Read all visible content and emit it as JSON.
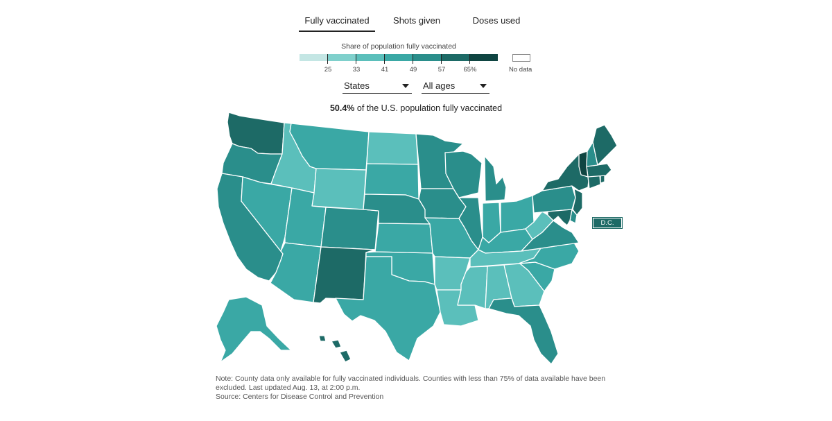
{
  "tabs": [
    {
      "label": "Fully vaccinated",
      "active": true
    },
    {
      "label": "Shots given",
      "active": false
    },
    {
      "label": "Doses used",
      "active": false
    }
  ],
  "legend": {
    "title": "Share of population fully vaccinated",
    "ticks": [
      "25",
      "33",
      "41",
      "49",
      "57",
      "65%"
    ],
    "no_data_label": "No data",
    "colors": [
      "#c4e6e4",
      "#7fd0cc",
      "#5bbfbb",
      "#3aa8a5",
      "#2a8e8b",
      "#1d6a66",
      "#0f4542"
    ]
  },
  "controls": {
    "geography_select": "States",
    "age_select": "All ages"
  },
  "headline": {
    "value": "50.4%",
    "text": " of the U.S. population fully vaccinated"
  },
  "map": {
    "dc_label": "D.C.",
    "dc_color": "#1d6a66",
    "states": [
      {
        "id": "WA",
        "color": "#1d6a66"
      },
      {
        "id": "OR",
        "color": "#2a8e8b"
      },
      {
        "id": "CA",
        "color": "#2a8e8b"
      },
      {
        "id": "NV",
        "color": "#3aa8a5"
      },
      {
        "id": "ID",
        "color": "#5bbfbb"
      },
      {
        "id": "MT",
        "color": "#3aa8a5"
      },
      {
        "id": "WY",
        "color": "#5bbfbb"
      },
      {
        "id": "UT",
        "color": "#3aa8a5"
      },
      {
        "id": "AZ",
        "color": "#3aa8a5"
      },
      {
        "id": "CO",
        "color": "#2a8e8b"
      },
      {
        "id": "NM",
        "color": "#1d6a66"
      },
      {
        "id": "ND",
        "color": "#5bbfbb"
      },
      {
        "id": "SD",
        "color": "#3aa8a5"
      },
      {
        "id": "NE",
        "color": "#2a8e8b"
      },
      {
        "id": "KS",
        "color": "#3aa8a5"
      },
      {
        "id": "OK",
        "color": "#3aa8a5"
      },
      {
        "id": "TX",
        "color": "#3aa8a5"
      },
      {
        "id": "MN",
        "color": "#2a8e8b"
      },
      {
        "id": "IA",
        "color": "#2a8e8b"
      },
      {
        "id": "MO",
        "color": "#3aa8a5"
      },
      {
        "id": "AR",
        "color": "#5bbfbb"
      },
      {
        "id": "LA",
        "color": "#5bbfbb"
      },
      {
        "id": "WI",
        "color": "#2a8e8b"
      },
      {
        "id": "IL",
        "color": "#2a8e8b"
      },
      {
        "id": "MI",
        "color": "#2a8e8b"
      },
      {
        "id": "IN",
        "color": "#3aa8a5"
      },
      {
        "id": "OH",
        "color": "#3aa8a5"
      },
      {
        "id": "KY",
        "color": "#3aa8a5"
      },
      {
        "id": "TN",
        "color": "#5bbfbb"
      },
      {
        "id": "MS",
        "color": "#5bbfbb"
      },
      {
        "id": "AL",
        "color": "#5bbfbb"
      },
      {
        "id": "GA",
        "color": "#5bbfbb"
      },
      {
        "id": "FL",
        "color": "#2a8e8b"
      },
      {
        "id": "SC",
        "color": "#3aa8a5"
      },
      {
        "id": "NC",
        "color": "#3aa8a5"
      },
      {
        "id": "VA",
        "color": "#2a8e8b"
      },
      {
        "id": "WV",
        "color": "#5bbfbb"
      },
      {
        "id": "PA",
        "color": "#2a8e8b"
      },
      {
        "id": "NY",
        "color": "#1d6a66"
      },
      {
        "id": "NJ",
        "color": "#1d6a66"
      },
      {
        "id": "DE",
        "color": "#2a8e8b"
      },
      {
        "id": "MD",
        "color": "#1d6a66"
      },
      {
        "id": "CT",
        "color": "#1d6a66"
      },
      {
        "id": "RI",
        "color": "#1d6a66"
      },
      {
        "id": "MA",
        "color": "#1d6a66"
      },
      {
        "id": "VT",
        "color": "#0f4542"
      },
      {
        "id": "NH",
        "color": "#2a8e8b"
      },
      {
        "id": "ME",
        "color": "#1d6a66"
      },
      {
        "id": "AK",
        "color": "#3aa8a5"
      },
      {
        "id": "HI",
        "color": "#1d6a66"
      }
    ]
  },
  "note": {
    "line1": "Note: County data only available for fully vaccinated individuals. Counties with less than 75% of data available have been",
    "line2": "excluded. Last updated Aug. 13, at 2:00 p.m.",
    "source": "Source: Centers for Disease Control and Prevention"
  }
}
